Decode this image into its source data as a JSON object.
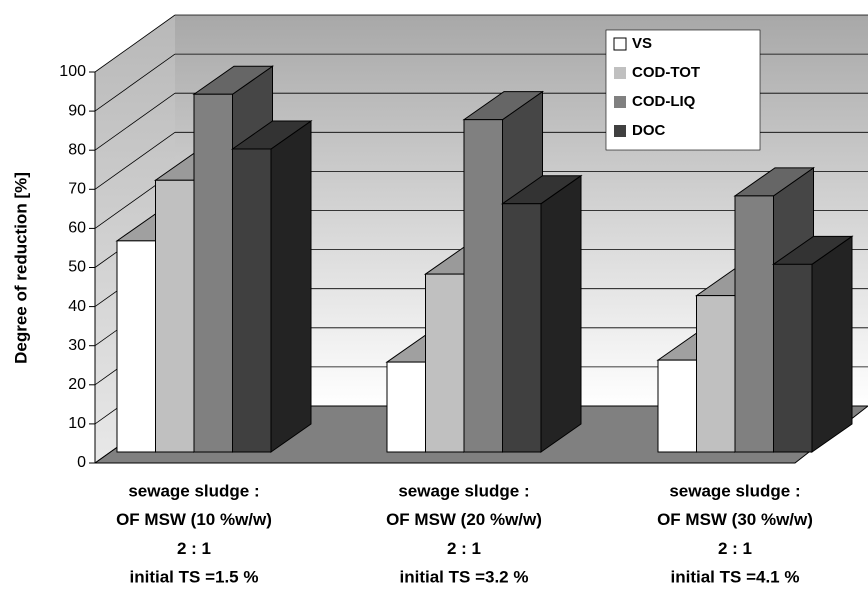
{
  "chart_data": {
    "type": "bar3d",
    "y_label": "Degree of  reduction [%]",
    "categories": [
      [
        "sewage sludge :",
        "OF MSW (10 %w/w)",
        "2 : 1",
        "initial TS =1.5 %"
      ],
      [
        "sewage sludge :",
        "OF MSW (20 %w/w)",
        "2 : 1",
        "initial TS =3.2 %"
      ],
      [
        "sewage sludge :",
        "OF MSW (30 %w/w)",
        "2 : 1",
        "initial TS =4.1 %"
      ]
    ],
    "series": [
      {
        "name": "VS",
        "color": "#ffffff",
        "values": [
          54,
          23,
          23.5
        ]
      },
      {
        "name": "COD-TOT",
        "color": "#c0c0c0",
        "values": [
          69.5,
          45.5,
          40
        ]
      },
      {
        "name": "COD-LIQ",
        "color": "#808080",
        "values": [
          91.5,
          85,
          65.5
        ]
      },
      {
        "name": "DOC",
        "color": "#404040",
        "values": [
          77.5,
          63.5,
          48
        ]
      }
    ],
    "ylim": [
      0,
      100
    ],
    "yticks": [
      0,
      10,
      20,
      30,
      40,
      50,
      60,
      70,
      80,
      90,
      100
    ],
    "grid": true,
    "legend": "top-right"
  }
}
